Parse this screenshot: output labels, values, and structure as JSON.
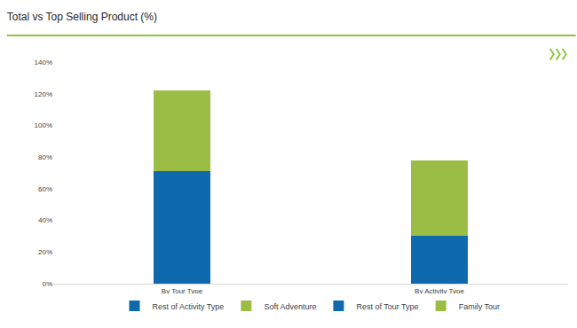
{
  "chart_data": {
    "type": "bar",
    "title": "Total vs Top Selling Product (%)",
    "categories": [
      "By Tour Type",
      "By Activity Type"
    ],
    "series": [
      {
        "name": "Rest of Activity Type",
        "color": "#0e6aad",
        "values": [
          null,
          30
        ]
      },
      {
        "name": "Soft Adventure",
        "color": "#9bbd45",
        "values": [
          null,
          48
        ]
      },
      {
        "name": "Rest of Tour Type",
        "color": "#0e6aad",
        "values": [
          71,
          null
        ]
      },
      {
        "name": "Family Tour",
        "color": "#9bbd45",
        "values": [
          51,
          null
        ]
      }
    ],
    "ylim": [
      0,
      140
    ],
    "yticks": [
      {
        "value": 0,
        "label": "0%"
      },
      {
        "value": 20,
        "label": "20%"
      },
      {
        "value": 40,
        "label": "40%"
      },
      {
        "value": 60,
        "label": "60%"
      },
      {
        "value": 80,
        "label": "80%"
      },
      {
        "value": 100,
        "label": "100%"
      },
      {
        "value": 120,
        "label": "120%"
      },
      {
        "value": 140,
        "label": "140%"
      }
    ],
    "stacked": true,
    "grid": false,
    "legend": "bottom",
    "data_labels": false
  }
}
